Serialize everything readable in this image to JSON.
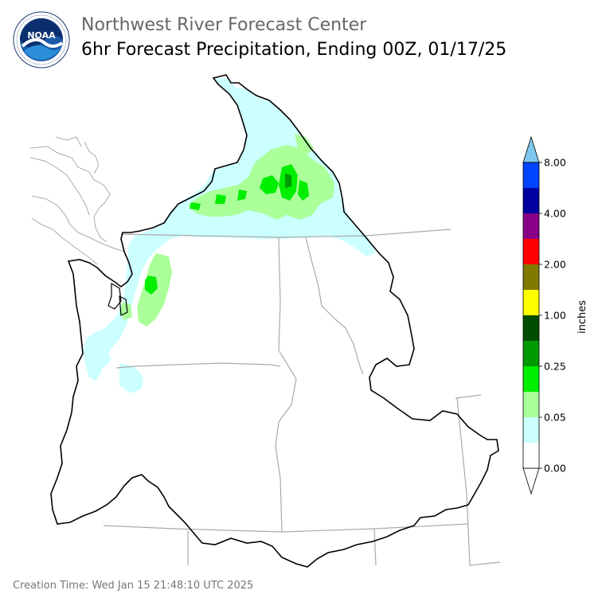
{
  "header": {
    "title": "Northwest River Forecast Center",
    "subtitle": "6hr Forecast Precipitation, Ending 00Z, 01/17/25"
  },
  "logo": {
    "text": "NOAA",
    "icon": "noaa-logo-icon"
  },
  "colorbar": {
    "label": "inches",
    "over_color": "#7ec8ef",
    "under_color": "#ffffff",
    "bins": [
      {
        "color": "#ffffff"
      },
      {
        "color": "#ccffff"
      },
      {
        "color": "#aaff99"
      },
      {
        "color": "#00ee00"
      },
      {
        "color": "#009900"
      },
      {
        "color": "#004d00"
      },
      {
        "color": "#ffff00"
      },
      {
        "color": "#807a00"
      },
      {
        "color": "#ff0000"
      },
      {
        "color": "#880088"
      },
      {
        "color": "#0000a0"
      },
      {
        "color": "#0044ff"
      }
    ],
    "ticks": [
      "0.00",
      "0.05",
      "0.25",
      "1.00",
      "2.00",
      "4.00",
      "8.00"
    ]
  },
  "footer": {
    "creation_time": "Creation Time: Wed Jan 15 21:48:10 UTC 2025"
  }
}
